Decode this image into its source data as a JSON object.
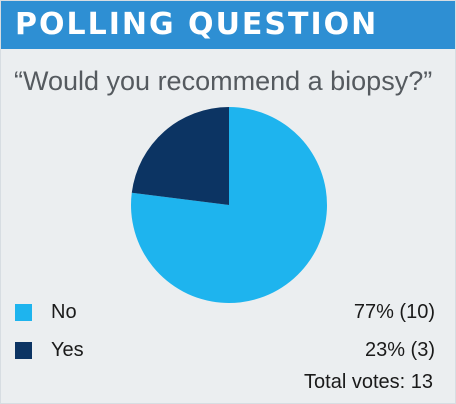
{
  "header": {
    "title": "POLLING QUESTION",
    "color": "#2e8fd3"
  },
  "question": "“Would you recommend a biopsy?”",
  "chart_data": {
    "type": "pie",
    "title": "",
    "slices": [
      {
        "name": "No",
        "percent": 77,
        "votes": 10,
        "value_label": "77% (10)",
        "color": "#1eb4ee"
      },
      {
        "name": "Yes",
        "percent": 23,
        "votes": 3,
        "value_label": "23% (3)",
        "color": "#0c3463"
      }
    ],
    "total_votes": 13,
    "total_label": "Total votes: 13",
    "legend_position": "bottom"
  }
}
